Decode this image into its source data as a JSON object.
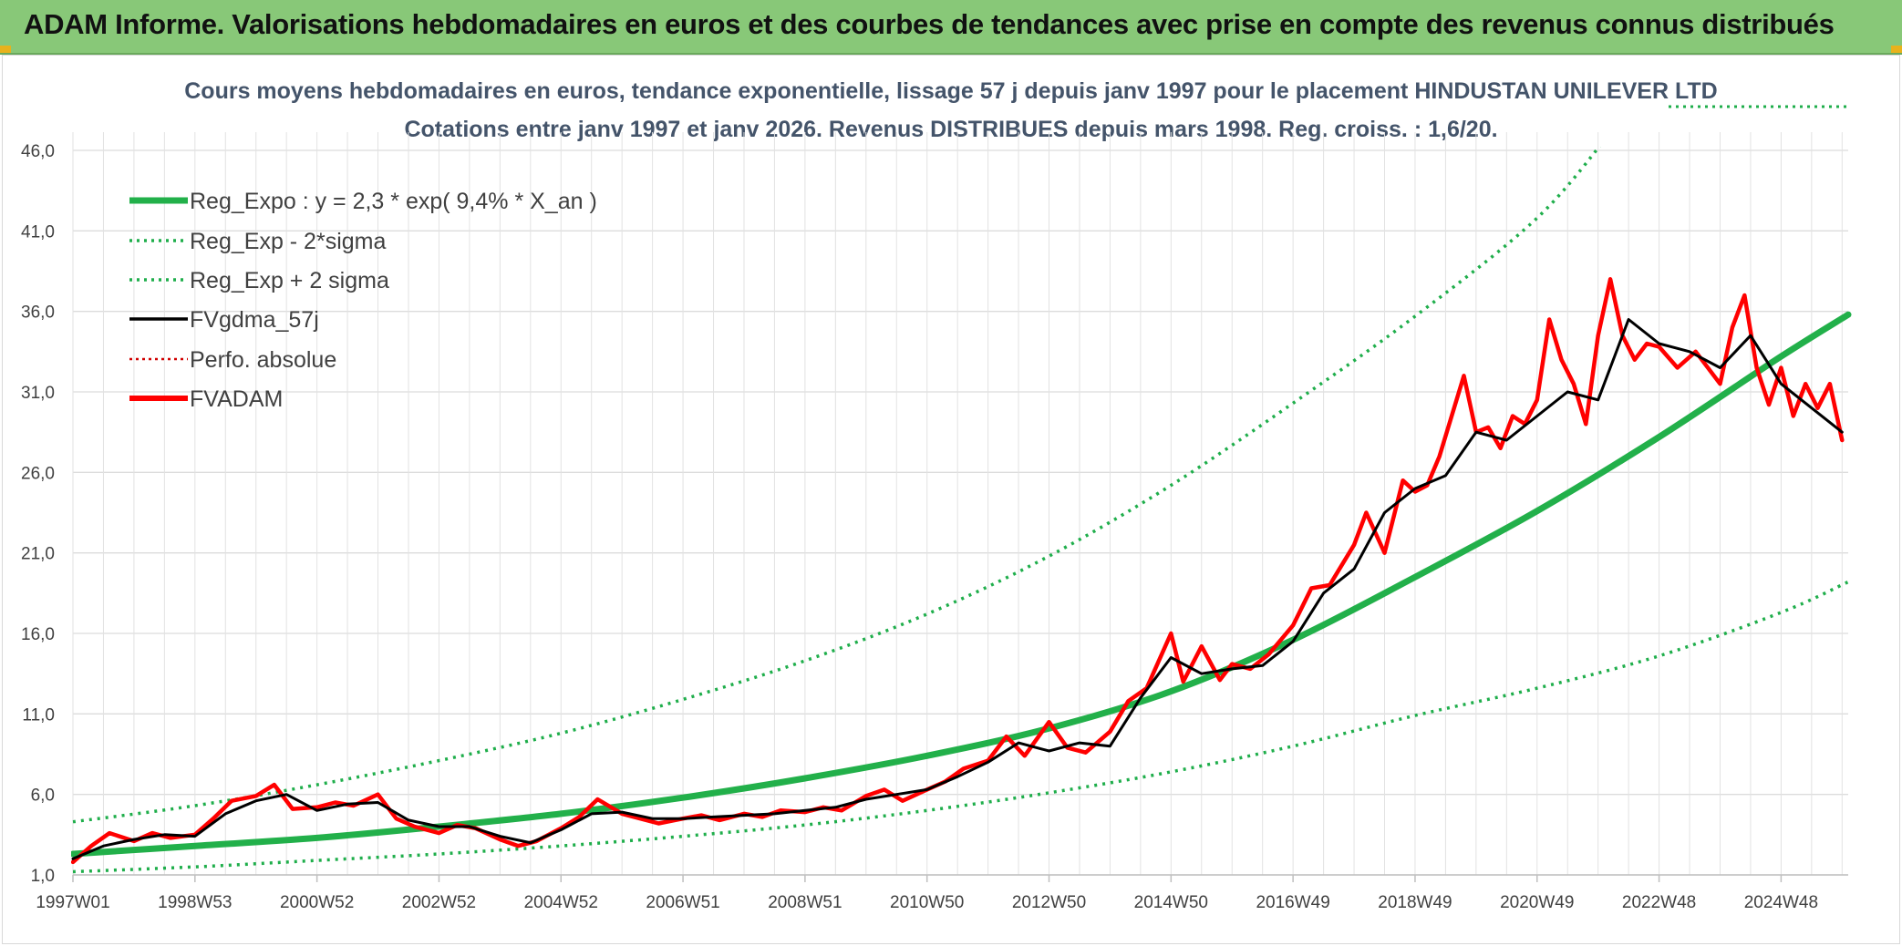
{
  "banner": {
    "title": "ADAM Informe. Valorisations hebdomadaires en euros et des courbes de tendances avec prise en compte des revenus connus distribués"
  },
  "colors": {
    "banner_bg": "#88c878",
    "trend": "#22b04a",
    "sigma": "#1fae4b",
    "smooth": "#000000",
    "perf": "#d00000",
    "fvadam": "#ff0000",
    "grid": "#dcdcdc"
  },
  "chart_data": {
    "type": "line",
    "title_line1": "Cours moyens hebdomadaires en euros, tendance exponentielle, lissage 57 j depuis janv 1997 pour le placement HINDUSTAN UNILEVER LTD",
    "title_line2": "Cotations entre janv 1997 et janv 2026. Revenus DISTRIBUES depuis mars 1998. Reg. croiss. : 1,6/20.",
    "xlabel": "",
    "ylabel": "",
    "ylim": [
      1.0,
      46.0
    ],
    "xlim": [
      1997.0,
      2026.1
    ],
    "y_ticks": [
      "1,0",
      "6,0",
      "11,0",
      "16,0",
      "21,0",
      "26,0",
      "31,0",
      "36,0",
      "41,0",
      "46,0"
    ],
    "y_tick_values": [
      1,
      6,
      11,
      16,
      21,
      26,
      31,
      36,
      41,
      46
    ],
    "x_ticks": [
      "1997W01",
      "1998W53",
      "2000W52",
      "2002W52",
      "2004W52",
      "2006W51",
      "2008W51",
      "2010W50",
      "2012W50",
      "2014W50",
      "2016W49",
      "2018W49",
      "2020W49",
      "2022W48",
      "2024W48"
    ],
    "x_tick_values": [
      1997.0,
      1999.0,
      2001.0,
      2003.0,
      2005.0,
      2007.0,
      2009.0,
      2011.0,
      2013.0,
      2015.0,
      2017.0,
      2019.0,
      2021.0,
      2023.0,
      2025.0
    ],
    "grid": true,
    "legend_position": "top-left",
    "legend": [
      {
        "label": "Reg_Expo : y = 2,3 * exp( 9,4% *  X_an )",
        "style": "solid-thick",
        "color": "#22b04a"
      },
      {
        "label": "Reg_Exp - 2*sigma",
        "style": "dotted",
        "color": "#1fae4b"
      },
      {
        "label": "Reg_Exp + 2 sigma",
        "style": "dotted",
        "color": "#1fae4b"
      },
      {
        "label": "FVgdma_57j",
        "style": "solid",
        "color": "#000000"
      },
      {
        "label": "Perfo. absolue",
        "style": "dotted-thin",
        "color": "#d00000"
      },
      {
        "label": "FVADAM",
        "style": "solid-thick",
        "color": "#ff0000"
      }
    ],
    "series": [
      {
        "name": "Reg_Expo : y = 2,3 * exp( 9,4% *  X_an )",
        "x": [
          1997.0,
          1999.0,
          2001.0,
          2003.0,
          2005.0,
          2007.0,
          2009.0,
          2011.0,
          2013.0,
          2015.0,
          2017.0,
          2019.0,
          2021.0,
          2023.0,
          2025.0,
          2026.1
        ],
        "y": [
          2.3,
          2.8,
          3.3,
          4.0,
          4.8,
          5.8,
          7.0,
          8.4,
          10.1,
          12.4,
          15.6,
          19.5,
          23.6,
          28.2,
          33.2,
          35.8
        ]
      },
      {
        "name": "Reg_Exp - 2*sigma",
        "x": [
          1997.0,
          1999.0,
          2001.0,
          2003.0,
          2005.0,
          2007.0,
          2009.0,
          2011.0,
          2013.0,
          2015.0,
          2017.0,
          2019.0,
          2021.0,
          2023.0,
          2025.0,
          2026.1
        ],
        "y": [
          1.2,
          1.5,
          1.9,
          2.3,
          2.8,
          3.4,
          4.1,
          5.0,
          6.1,
          7.4,
          9.0,
          10.9,
          12.6,
          14.6,
          17.3,
          19.2
        ]
      },
      {
        "name": "Reg_Exp + 2 sigma",
        "x": [
          1997.0,
          1999.0,
          2001.0,
          2003.0,
          2005.0,
          2007.0,
          2009.0,
          2011.0,
          2013.0,
          2015.0,
          2017.0,
          2019.0,
          2021.0,
          2022.2
        ],
        "y": [
          4.3,
          5.3,
          6.6,
          8.1,
          9.8,
          11.9,
          14.3,
          17.2,
          20.8,
          25.2,
          30.3,
          35.7,
          41.8,
          47.1
        ]
      },
      {
        "name": "FVgdma_57j",
        "x": [
          1997.0,
          1997.5,
          1998.0,
          1998.5,
          1999.0,
          1999.5,
          2000.0,
          2000.5,
          2001.0,
          2001.5,
          2002.0,
          2002.5,
          2003.0,
          2003.5,
          2004.0,
          2004.5,
          2005.0,
          2005.5,
          2006.0,
          2006.5,
          2007.0,
          2007.5,
          2008.0,
          2008.5,
          2009.0,
          2009.5,
          2010.0,
          2010.5,
          2011.0,
          2011.5,
          2012.0,
          2012.5,
          2013.0,
          2013.5,
          2014.0,
          2014.5,
          2015.0,
          2015.5,
          2016.0,
          2016.5,
          2017.0,
          2017.5,
          2018.0,
          2018.5,
          2019.0,
          2019.5,
          2020.0,
          2020.5,
          2021.0,
          2021.5,
          2022.0,
          2022.5,
          2023.0,
          2023.5,
          2024.0,
          2024.5,
          2025.0,
          2025.5,
          2026.0
        ],
        "y": [
          2.0,
          2.8,
          3.2,
          3.5,
          3.4,
          4.8,
          5.6,
          6.0,
          5.0,
          5.4,
          5.5,
          4.4,
          4.0,
          4.0,
          3.4,
          3.0,
          3.8,
          4.8,
          4.9,
          4.5,
          4.5,
          4.6,
          4.7,
          4.8,
          5.0,
          5.2,
          5.7,
          6.0,
          6.3,
          7.1,
          8.0,
          9.2,
          8.7,
          9.2,
          9.0,
          12.0,
          14.5,
          13.5,
          13.8,
          14.0,
          15.5,
          18.5,
          20.0,
          23.5,
          25.0,
          25.8,
          28.5,
          28.0,
          29.5,
          31.0,
          30.5,
          35.5,
          34.0,
          33.5,
          32.5,
          34.5,
          31.5,
          30.0,
          28.5
        ]
      },
      {
        "name": "Perfo. absolue",
        "x": [],
        "y": []
      },
      {
        "name": "FVADAM",
        "x": [
          1997.0,
          1997.3,
          1997.6,
          1998.0,
          1998.3,
          1998.6,
          1999.0,
          1999.3,
          1999.6,
          2000.0,
          2000.3,
          2000.6,
          2001.0,
          2001.3,
          2001.6,
          2002.0,
          2002.3,
          2002.6,
          2003.0,
          2003.3,
          2003.6,
          2004.0,
          2004.3,
          2004.6,
          2005.0,
          2005.3,
          2005.6,
          2006.0,
          2006.3,
          2006.6,
          2007.0,
          2007.3,
          2007.6,
          2008.0,
          2008.3,
          2008.6,
          2009.0,
          2009.3,
          2009.6,
          2010.0,
          2010.3,
          2010.6,
          2011.0,
          2011.3,
          2011.6,
          2012.0,
          2012.3,
          2012.6,
          2013.0,
          2013.3,
          2013.6,
          2014.0,
          2014.3,
          2014.6,
          2015.0,
          2015.2,
          2015.5,
          2015.8,
          2016.0,
          2016.3,
          2016.6,
          2017.0,
          2017.3,
          2017.6,
          2018.0,
          2018.2,
          2018.5,
          2018.8,
          2019.0,
          2019.2,
          2019.4,
          2019.6,
          2019.8,
          2020.0,
          2020.2,
          2020.4,
          2020.6,
          2020.8,
          2021.0,
          2021.2,
          2021.4,
          2021.6,
          2021.8,
          2022.0,
          2022.2,
          2022.4,
          2022.6,
          2022.8,
          2023.0,
          2023.3,
          2023.6,
          2024.0,
          2024.2,
          2024.4,
          2024.6,
          2024.8,
          2025.0,
          2025.2,
          2025.4,
          2025.6,
          2025.8,
          2026.0
        ],
        "y": [
          1.8,
          2.8,
          3.6,
          3.1,
          3.6,
          3.3,
          3.5,
          4.5,
          5.6,
          5.9,
          6.6,
          5.1,
          5.2,
          5.5,
          5.3,
          6.0,
          4.5,
          4.0,
          3.6,
          4.1,
          3.9,
          3.2,
          2.8,
          3.1,
          3.9,
          4.6,
          5.7,
          4.8,
          4.5,
          4.2,
          4.5,
          4.7,
          4.4,
          4.8,
          4.6,
          5.0,
          4.9,
          5.2,
          5.0,
          5.9,
          6.3,
          5.6,
          6.3,
          6.8,
          7.6,
          8.1,
          9.6,
          8.4,
          10.5,
          8.9,
          8.6,
          9.9,
          11.8,
          12.6,
          16.0,
          13.0,
          15.2,
          13.1,
          14.1,
          13.8,
          14.7,
          16.5,
          18.8,
          19.0,
          21.5,
          23.5,
          21.0,
          25.5,
          24.8,
          25.2,
          27.0,
          29.5,
          32.0,
          28.5,
          28.8,
          27.5,
          29.5,
          29.0,
          30.5,
          35.5,
          33.0,
          31.5,
          29.0,
          34.5,
          38.0,
          34.5,
          33.0,
          34.0,
          33.8,
          32.5,
          33.5,
          31.5,
          35.0,
          37.0,
          32.5,
          30.2,
          32.5,
          29.5,
          31.5,
          30.0,
          31.5,
          28.0
        ]
      }
    ]
  }
}
